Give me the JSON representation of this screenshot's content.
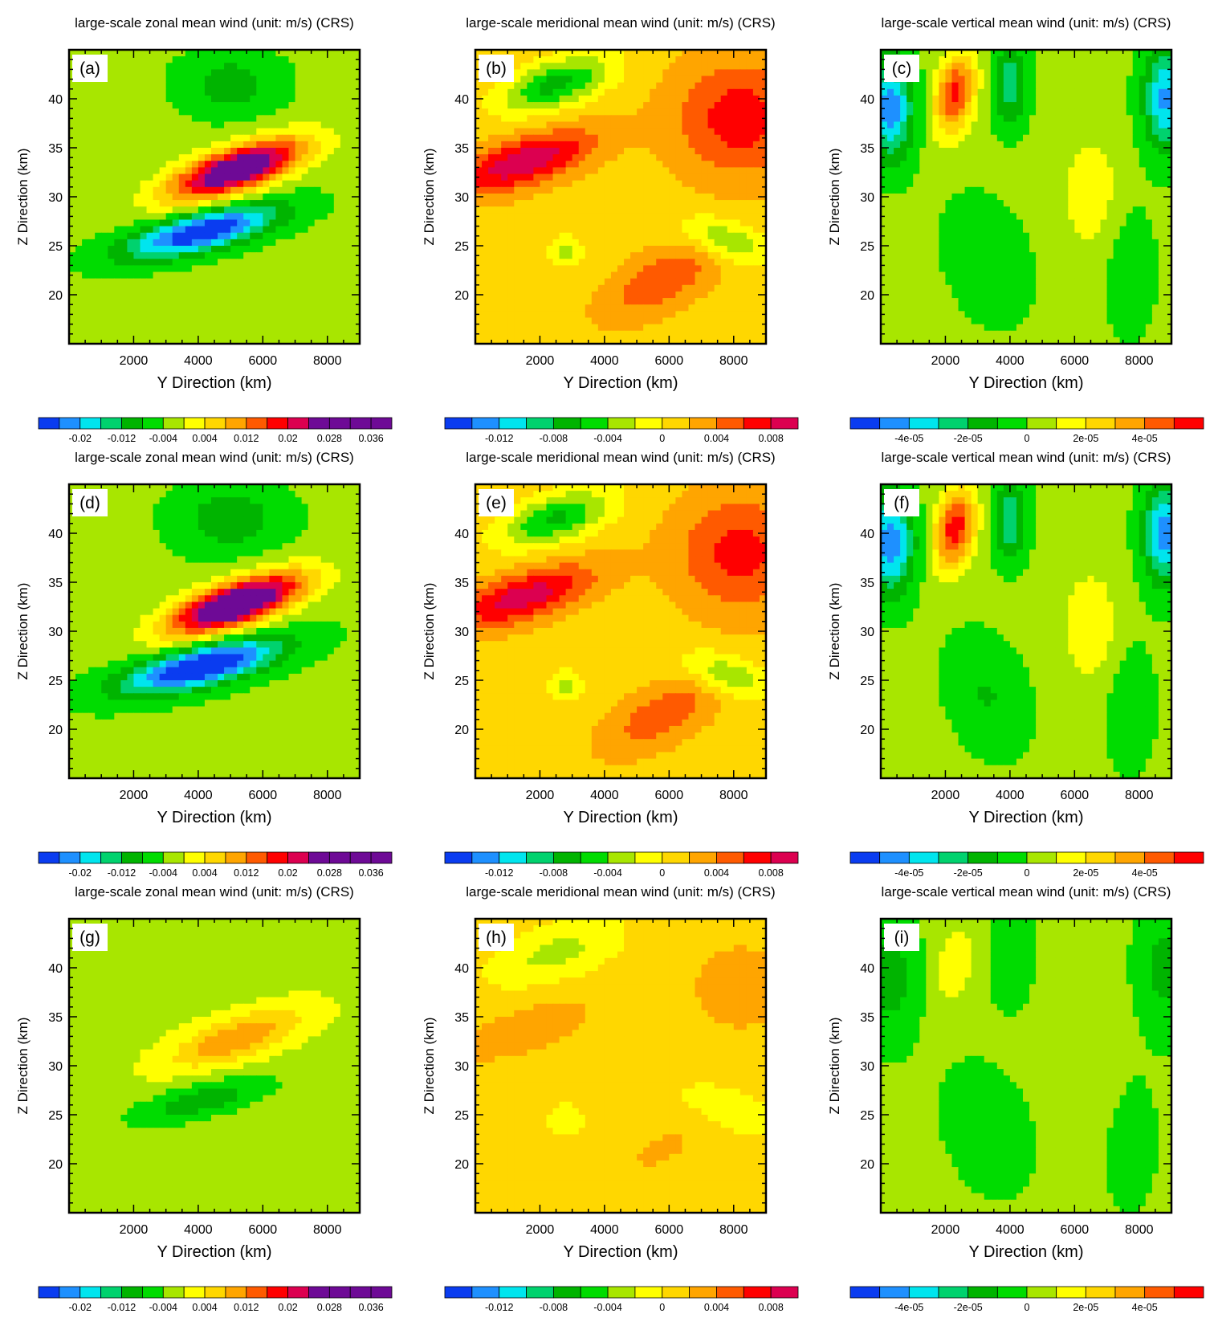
{
  "chart_data": [
    {
      "type": "heatmap",
      "panel_label": "(a)",
      "title": "large-scale zonal mean wind (unit: m/s) (CRS)",
      "xlabel": "Y Direction (km)",
      "ylabel": "Z Direction (km)",
      "xlim": [
        0,
        9000
      ],
      "ylim": [
        15,
        45
      ],
      "xticks": [
        "2000",
        "4000",
        "6000",
        "8000"
      ],
      "yticks": [
        "20",
        "25",
        "30",
        "35",
        "40"
      ],
      "colorbar": "zonal",
      "structure": "zonal",
      "amp": 1.0
    },
    {
      "type": "heatmap",
      "panel_label": "(b)",
      "title": "large-scale meridional mean wind (unit: m/s) (CRS)",
      "xlabel": "Y Direction (km)",
      "ylabel": "Z Direction (km)",
      "xlim": [
        0,
        9000
      ],
      "ylim": [
        15,
        45
      ],
      "xticks": [
        "2000",
        "4000",
        "6000",
        "8000"
      ],
      "yticks": [
        "20",
        "25",
        "30",
        "35",
        "40"
      ],
      "colorbar": "meridional",
      "structure": "meridional",
      "amp": 1.0
    },
    {
      "type": "heatmap",
      "panel_label": "(c)",
      "title": "large-scale vertical mean wind (unit: m/s) (CRS)",
      "xlabel": "Y Direction (km)",
      "ylabel": "Z Direction (km)",
      "xlim": [
        0,
        9000
      ],
      "ylim": [
        15,
        45
      ],
      "xticks": [
        "2000",
        "4000",
        "6000",
        "8000"
      ],
      "yticks": [
        "20",
        "25",
        "30",
        "35",
        "40"
      ],
      "colorbar": "vertical",
      "structure": "vertical",
      "amp": 1.0
    },
    {
      "type": "heatmap",
      "panel_label": "(d)",
      "title": "large-scale zonal mean wind (unit: m/s) (CRS)",
      "xlabel": "Y Direction (km)",
      "ylabel": "Z Direction (km)",
      "xlim": [
        0,
        9000
      ],
      "ylim": [
        15,
        45
      ],
      "xticks": [
        "2000",
        "4000",
        "6000",
        "8000"
      ],
      "yticks": [
        "20",
        "25",
        "30",
        "35",
        "40"
      ],
      "colorbar": "zonal",
      "structure": "zonal",
      "amp": 1.12
    },
    {
      "type": "heatmap",
      "panel_label": "(e)",
      "title": "large-scale meridional mean wind (unit: m/s) (CRS)",
      "xlabel": "Y Direction (km)",
      "ylabel": "Z Direction (km)",
      "xlim": [
        0,
        9000
      ],
      "ylim": [
        15,
        45
      ],
      "xticks": [
        "2000",
        "4000",
        "6000",
        "8000"
      ],
      "yticks": [
        "20",
        "25",
        "30",
        "35",
        "40"
      ],
      "colorbar": "meridional",
      "structure": "meridional",
      "amp": 0.95
    },
    {
      "type": "heatmap",
      "panel_label": "(f)",
      "title": "large-scale vertical mean wind (unit: m/s) (CRS)",
      "xlabel": "Y Direction (km)",
      "ylabel": "Z Direction (km)",
      "xlim": [
        0,
        9000
      ],
      "ylim": [
        15,
        45
      ],
      "xticks": [
        "2000",
        "4000",
        "6000",
        "8000"
      ],
      "yticks": [
        "20",
        "25",
        "30",
        "35",
        "40"
      ],
      "colorbar": "vertical",
      "structure": "vertical",
      "amp": 1.05
    },
    {
      "type": "heatmap",
      "panel_label": "(g)",
      "title": "large-scale zonal mean wind (unit: m/s) (CRS)",
      "xlabel": "Y Direction (km)",
      "ylabel": "Z Direction (km)",
      "xlim": [
        0,
        9000
      ],
      "ylim": [
        15,
        45
      ],
      "xticks": [
        "2000",
        "4000",
        "6000",
        "8000"
      ],
      "yticks": [
        "20",
        "25",
        "30",
        "35",
        "40"
      ],
      "colorbar": "zonal",
      "structure": "zonal",
      "amp": 0.35
    },
    {
      "type": "heatmap",
      "panel_label": "(h)",
      "title": "large-scale meridional mean wind (unit: m/s) (CRS)",
      "xlabel": "Y Direction (km)",
      "ylabel": "Z Direction (km)",
      "xlim": [
        0,
        9000
      ],
      "ylim": [
        15,
        45
      ],
      "xticks": [
        "2000",
        "4000",
        "6000",
        "8000"
      ],
      "yticks": [
        "20",
        "25",
        "30",
        "35",
        "40"
      ],
      "colorbar": "meridional",
      "structure": "meridional",
      "amp": 0.4
    },
    {
      "type": "heatmap",
      "panel_label": "(i)",
      "title": "large-scale vertical mean wind (unit: m/s) (CRS)",
      "xlabel": "Y Direction (km)",
      "ylabel": "Z Direction (km)",
      "xlim": [
        0,
        9000
      ],
      "ylim": [
        15,
        45
      ],
      "xticks": [
        "2000",
        "4000",
        "6000",
        "8000"
      ],
      "yticks": [
        "20",
        "25",
        "30",
        "35",
        "40"
      ],
      "colorbar": "vertical",
      "structure": "vertical",
      "amp": 0.35
    }
  ],
  "colorbars": {
    "zonal": {
      "levels": [
        -0.024,
        -0.02,
        -0.016,
        -0.012,
        -0.008,
        -0.004,
        0,
        0.004,
        0.008,
        0.012,
        0.016,
        0.02,
        0.024,
        0.028,
        0.032,
        0.036
      ],
      "labels": [
        "-0.02",
        "-0.012",
        "-0.004",
        "0.004",
        "0.012",
        "0.02",
        "0.028",
        "0.036"
      ]
    },
    "meridional": {
      "levels": [
        -0.014,
        -0.012,
        -0.01,
        -0.008,
        -0.006,
        -0.004,
        -0.002,
        0,
        0.002,
        0.004,
        0.006,
        0.008
      ],
      "labels": [
        "-0.012",
        "-0.008",
        "-0.004",
        "0",
        "0.004",
        "0.008"
      ]
    },
    "vertical": {
      "levels": [
        -5e-05,
        -4e-05,
        -3e-05,
        -2e-05,
        -1e-05,
        0,
        1e-05,
        2e-05,
        3e-05,
        4e-05,
        5e-05
      ],
      "labels": [
        "-4e-05",
        "-2e-05",
        "0",
        "2e-05",
        "4e-05"
      ]
    }
  },
  "palette": [
    "#0a3cf0",
    "#1e90ff",
    "#00e5ee",
    "#00d26e",
    "#00b400",
    "#00dc00",
    "#a8e600",
    "#ffff00",
    "#ffd700",
    "#ffa500",
    "#ff5a00",
    "#ff0000",
    "#dc0050",
    "#6e0a96"
  ]
}
